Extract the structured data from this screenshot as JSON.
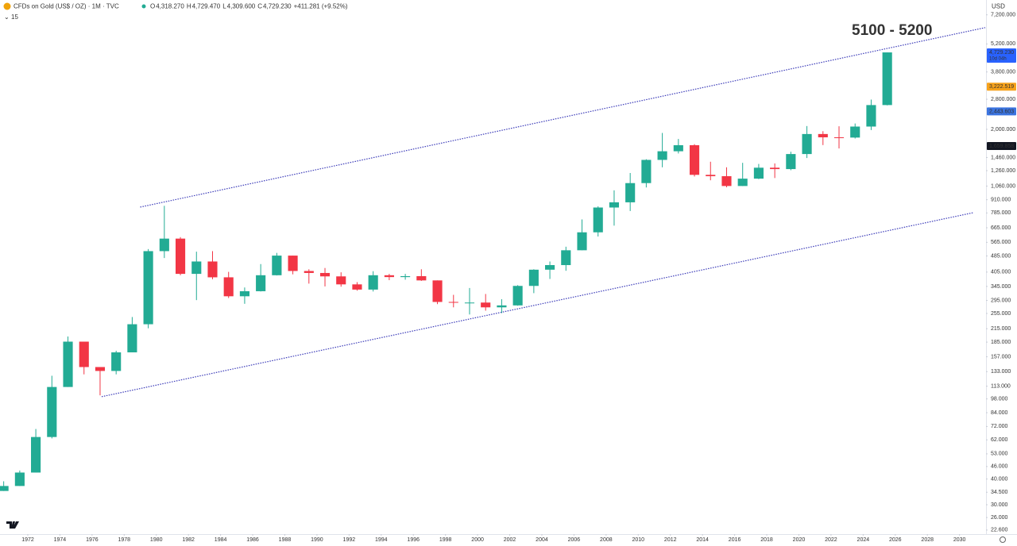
{
  "chart_data": {
    "type": "candlestick",
    "title": "CFDs on Gold (US$ / OZ) · 1M · TVC",
    "ohlc_header": [
      {
        "key": "O",
        "text": "4,318.270"
      },
      {
        "key": "H",
        "text": "4,729.470"
      },
      {
        "key": "L",
        "text": "4,309.600"
      },
      {
        "key": "C",
        "text": "4,729.230"
      }
    ],
    "change": "+411.281 (+9.52%)",
    "collapse_count": "15",
    "currency": "USD",
    "annotation": "5100 - 5200",
    "annotation_color": "#e0201b",
    "up_color": "#22ab94",
    "down_color": "#f23645",
    "log_scale": true,
    "grid": false,
    "x": [
      1970,
      1971,
      1972,
      1973,
      1974,
      1975,
      1976,
      1977,
      1978,
      1979,
      1980,
      1981,
      1982,
      1983,
      1984,
      1985,
      1986,
      1987,
      1988,
      1989,
      1990,
      1991,
      1992,
      1993,
      1994,
      1995,
      1996,
      1997,
      1998,
      1999,
      2000,
      2001,
      2002,
      2003,
      2004,
      2005,
      2006,
      2007,
      2008,
      2009,
      2010,
      2011,
      2012,
      2013,
      2014,
      2015,
      2016,
      2017,
      2018,
      2019,
      2020,
      2021,
      2022,
      2023,
      2024,
      2025
    ],
    "open": [
      35,
      37,
      43,
      64,
      112,
      186,
      140,
      134,
      165,
      226,
      512,
      589,
      397,
      456,
      382,
      309,
      327,
      391,
      487,
      410,
      401,
      386,
      353,
      333,
      391,
      383,
      387,
      369,
      290,
      288,
      288,
      273,
      279,
      347,
      416,
      438,
      517,
      632,
      834,
      884,
      1096,
      1421,
      1565,
      1675,
      1202,
      1184,
      1061,
      1152,
      1302,
      1282,
      1517,
      1898,
      1829,
      1824,
      2063,
      2624
    ],
    "high": [
      39,
      44,
      70,
      127,
      197,
      186,
      140,
      168,
      245,
      524,
      850,
      599,
      509,
      512,
      406,
      341,
      443,
      502,
      487,
      418,
      424,
      404,
      362,
      409,
      397,
      397,
      418,
      369,
      314,
      339,
      317,
      299,
      350,
      418,
      456,
      538,
      730,
      845,
      1011,
      1227,
      1431,
      1921,
      1796,
      1694,
      1392,
      1308,
      1375,
      1358,
      1366,
      1557,
      2075,
      1959,
      2070,
      2135,
      2790,
      4729.47
    ],
    "low": [
      35,
      37,
      43,
      63,
      112,
      129,
      102,
      129,
      165,
      216,
      474,
      391,
      296,
      374,
      303,
      284,
      326,
      390,
      395,
      356,
      345,
      344,
      329,
      326,
      370,
      372,
      367,
      283,
      273,
      252,
      263,
      256,
      278,
      320,
      375,
      411,
      517,
      603,
      681,
      802,
      1044,
      1308,
      1527,
      1180,
      1131,
      1046,
      1061,
      1146,
      1160,
      1266,
      1451,
      1677,
      1615,
      1805,
      1984,
      2615
    ],
    "close": [
      37,
      43,
      64,
      112,
      186,
      140,
      134,
      165,
      226,
      512,
      589,
      397,
      456,
      382,
      309,
      327,
      391,
      487,
      410,
      401,
      386,
      353,
      333,
      391,
      383,
      387,
      369,
      290,
      288,
      288,
      273,
      279,
      347,
      416,
      438,
      517,
      632,
      834,
      884,
      1096,
      1421,
      1565,
      1675,
      1202,
      1184,
      1061,
      1152,
      1302,
      1282,
      1517,
      1898,
      1829,
      1824,
      2063,
      2624,
      4729.23
    ],
    "xlim": [
      1970.27,
      2031.6
    ],
    "xticks": [
      1972,
      1974,
      1976,
      1978,
      1980,
      1982,
      1984,
      1986,
      1988,
      1990,
      1992,
      1994,
      1996,
      1998,
      2000,
      2002,
      2004,
      2006,
      2008,
      2010,
      2012,
      2014,
      2016,
      2018,
      2020,
      2022,
      2024,
      2026,
      2028,
      2030
    ],
    "ylim": [
      21.6,
      8500
    ],
    "yticks": [
      {
        "value": 7200,
        "label": "7,200.000"
      },
      {
        "value": 5200,
        "label": "5,200.000"
      },
      {
        "value": 3800,
        "label": "3,800.000"
      },
      {
        "value": 2800,
        "label": "2,800.000"
      },
      {
        "value": 2000,
        "label": "2,000.000"
      },
      {
        "value": 1460,
        "label": "1,460.000"
      },
      {
        "value": 1260,
        "label": "1,260.000"
      },
      {
        "value": 1060,
        "label": "1,060.000"
      },
      {
        "value": 910,
        "label": "910.000"
      },
      {
        "value": 785,
        "label": "785.000"
      },
      {
        "value": 665,
        "label": "665.000"
      },
      {
        "value": 565,
        "label": "565.000"
      },
      {
        "value": 485,
        "label": "485.000"
      },
      {
        "value": 405,
        "label": "405.000"
      },
      {
        "value": 345,
        "label": "345.000"
      },
      {
        "value": 295,
        "label": "295.000"
      },
      {
        "value": 255,
        "label": "255.000"
      },
      {
        "value": 215,
        "label": "215.000"
      },
      {
        "value": 185,
        "label": "185.000"
      },
      {
        "value": 157,
        "label": "157.000"
      },
      {
        "value": 133,
        "label": "133.000"
      },
      {
        "value": 113,
        "label": "113.000"
      },
      {
        "value": 98,
        "label": "98.000"
      },
      {
        "value": 84,
        "label": "84.000"
      },
      {
        "value": 72,
        "label": "72.000"
      },
      {
        "value": 62,
        "label": "62.000"
      },
      {
        "value": 53,
        "label": "53.000"
      },
      {
        "value": 46,
        "label": "46.000"
      },
      {
        "value": 40,
        "label": "40.000"
      },
      {
        "value": 34.5,
        "label": "34.500"
      },
      {
        "value": 30,
        "label": "30.000"
      },
      {
        "value": 26,
        "label": "26.000"
      },
      {
        "value": 22.6,
        "label": "22.600"
      }
    ],
    "price_labels": [
      {
        "value": 4729.23,
        "label": "4,729.230",
        "sub": "10d 04h",
        "color": "#2962ff",
        "text_color": "#ffffff"
      },
      {
        "value": 3222.519,
        "label": "3,222.519",
        "color": "#f7a21b",
        "text_color": "#222222"
      },
      {
        "value": 2443.603,
        "label": "2,443.603",
        "color": "#3b74e0",
        "text_color": "#ffffff"
      },
      {
        "value": 1659.858,
        "label": "1,659.858",
        "color": "#131722",
        "text_color": "#ffffff"
      }
    ],
    "trendlines": [
      {
        "x": [
          1979.0,
          2031.6
        ],
        "y": [
          838,
          6240
        ],
        "color": "#3a3ab8"
      },
      {
        "x": [
          1976.6,
          2030.85
        ],
        "y": [
          100.5,
          787
        ],
        "color": "#3a3ab8"
      }
    ]
  }
}
